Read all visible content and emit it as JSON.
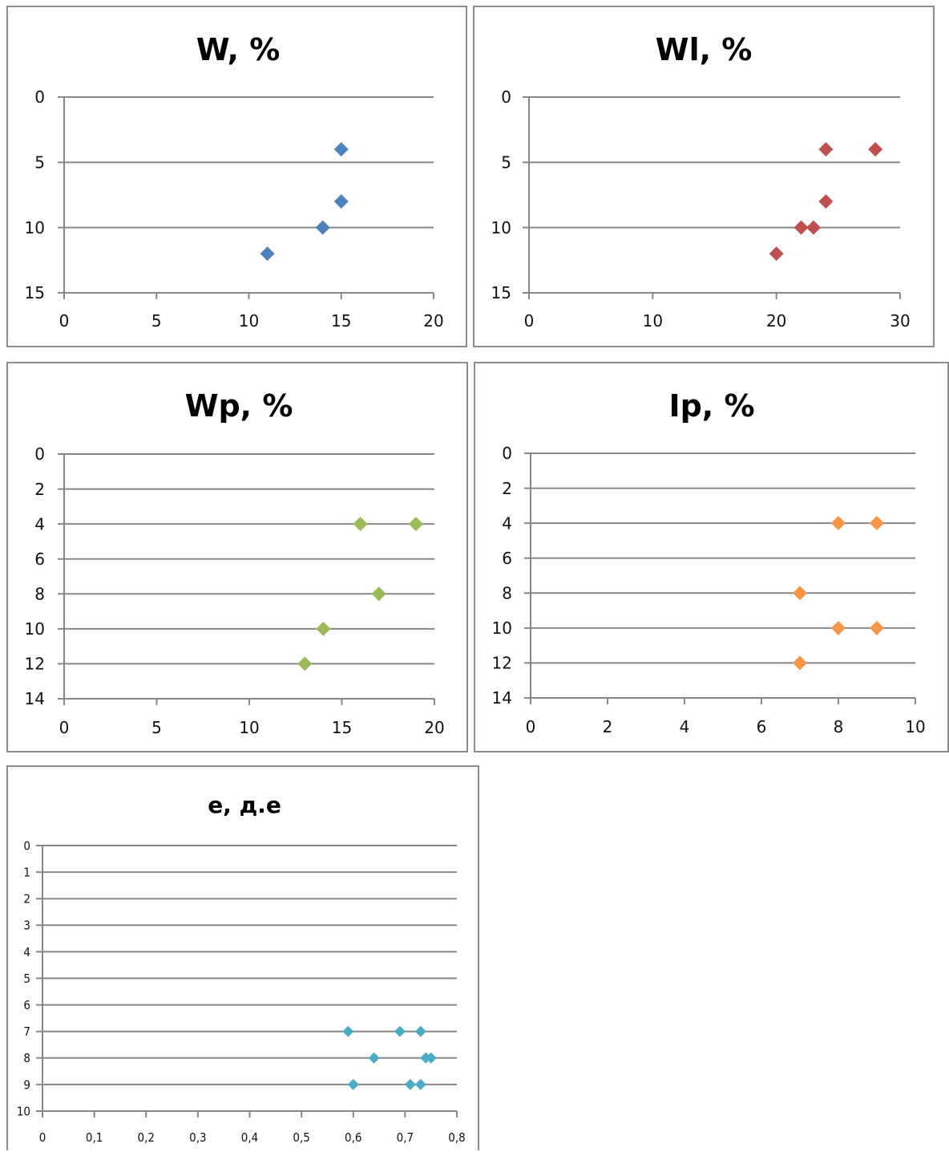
{
  "chart_data": [
    {
      "type": "scatter",
      "title": "W, %",
      "color": "#4f81bd",
      "xlim": [
        0,
        20
      ],
      "ylim": [
        0,
        15
      ],
      "y_inverted": true,
      "x_ticks": [
        "0",
        "5",
        "10",
        "15",
        "20"
      ],
      "y_ticks": [
        "0",
        "5",
        "10",
        "15"
      ],
      "grid": "horizontal",
      "x": [
        15,
        15,
        14,
        11
      ],
      "y": [
        4,
        8,
        10,
        12
      ]
    },
    {
      "type": "scatter",
      "title": "Wl, %",
      "color": "#c0504d",
      "xlim": [
        0,
        30
      ],
      "ylim": [
        0,
        15
      ],
      "y_inverted": true,
      "x_ticks": [
        "0",
        "10",
        "20",
        "30"
      ],
      "y_ticks": [
        "0",
        "5",
        "10",
        "15"
      ],
      "grid": "horizontal",
      "x": [
        24,
        28,
        24,
        22,
        23,
        20
      ],
      "y": [
        4,
        4,
        8,
        10,
        10,
        12
      ]
    },
    {
      "type": "scatter",
      "title": "Wp, %",
      "color": "#9bbb59",
      "xlim": [
        0,
        20
      ],
      "ylim": [
        0,
        14
      ],
      "y_inverted": true,
      "x_ticks": [
        "0",
        "5",
        "10",
        "15",
        "20"
      ],
      "y_ticks": [
        "0",
        "2",
        "4",
        "6",
        "8",
        "10",
        "12",
        "14"
      ],
      "grid": "horizontal",
      "x": [
        16,
        19,
        17,
        14,
        13
      ],
      "y": [
        4,
        4,
        8,
        10,
        12
      ]
    },
    {
      "type": "scatter",
      "title": "Ip, %",
      "color": "#f79646",
      "xlim": [
        0,
        10
      ],
      "ylim": [
        0,
        14
      ],
      "y_inverted": true,
      "x_ticks": [
        "0",
        "2",
        "4",
        "6",
        "8",
        "10"
      ],
      "y_ticks": [
        "0",
        "2",
        "4",
        "6",
        "8",
        "10",
        "12",
        "14"
      ],
      "grid": "horizontal",
      "x": [
        8,
        9,
        7,
        8,
        9,
        7
      ],
      "y": [
        4,
        4,
        8,
        10,
        10,
        12
      ]
    },
    {
      "type": "scatter",
      "title": "e, д.е",
      "color": "#4bacc6",
      "xlim": [
        0,
        0.8
      ],
      "ylim": [
        0,
        10
      ],
      "y_inverted": true,
      "x_ticks": [
        "0",
        "0,1",
        "0,2",
        "0,3",
        "0,4",
        "0,5",
        "0,6",
        "0,7",
        "0,8"
      ],
      "y_ticks": [
        "0",
        "1",
        "2",
        "3",
        "4",
        "5",
        "6",
        "7",
        "8",
        "9",
        "10"
      ],
      "grid": "horizontal",
      "x": [
        0.59,
        0.69,
        0.73,
        0.64,
        0.74,
        0.75,
        0.6,
        0.71,
        0.73
      ],
      "y": [
        7,
        7,
        7,
        8,
        8,
        8,
        9,
        9,
        9
      ]
    }
  ]
}
